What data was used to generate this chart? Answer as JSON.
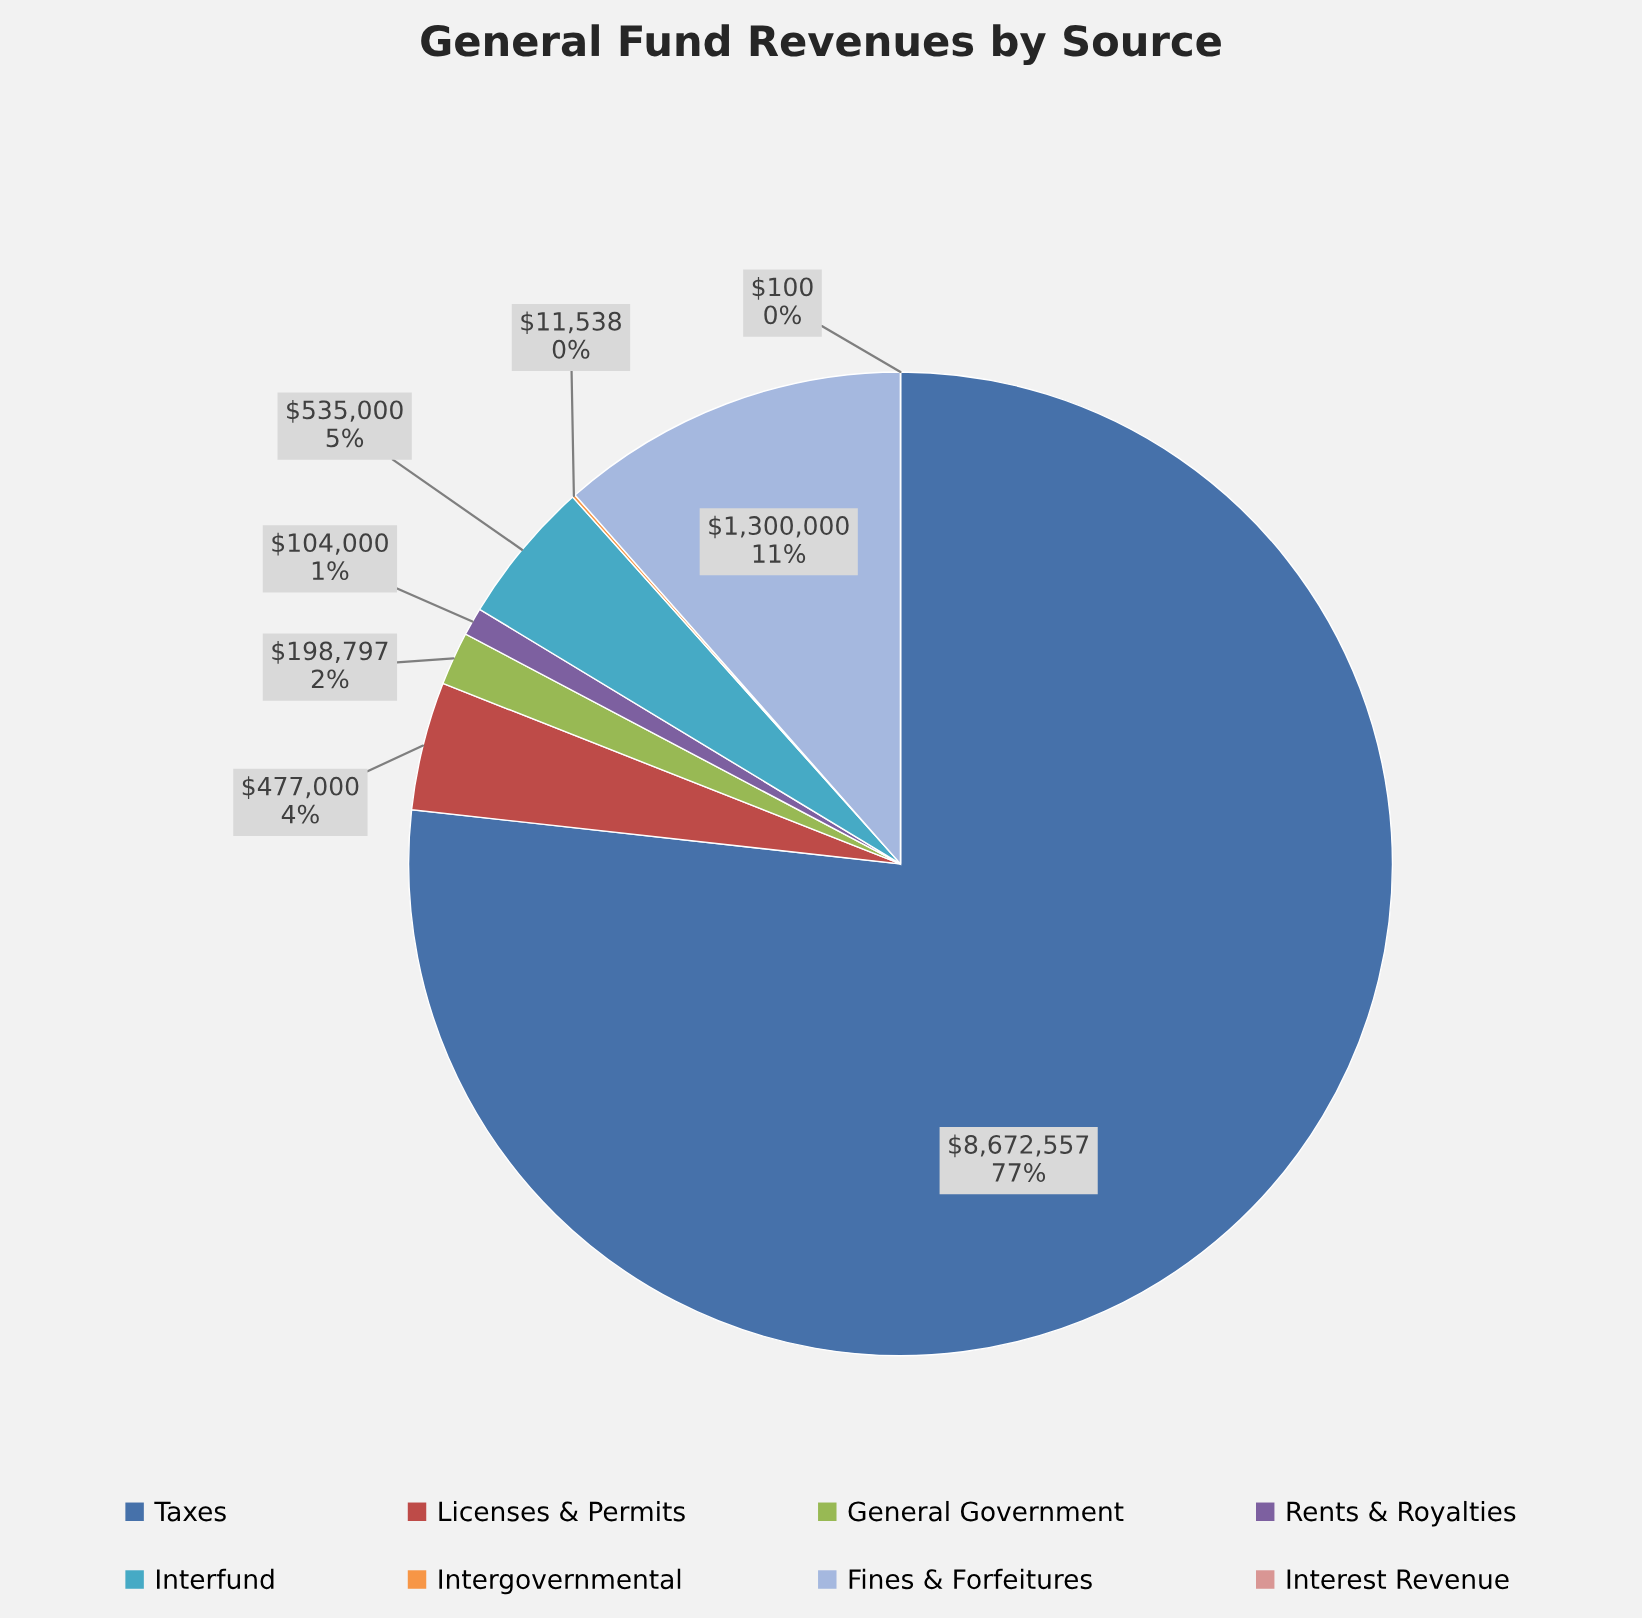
{
  "chart_data": {
    "type": "pie",
    "title": "General Fund Revenues by Source",
    "categories": [
      "Taxes",
      "Licenses & Permits",
      "General Government",
      "Rents & Royalties",
      "Interfund",
      "Intergovernmental",
      "Fines & Forfeitures",
      "Interest Revenue"
    ],
    "values": [
      8672557,
      477000,
      198797,
      104000,
      535000,
      11538,
      1300000,
      100
    ],
    "value_labels": [
      "$8,672,557\n77%",
      "$477,000\n4%",
      "$198,797\n2%",
      "$104,000\n1%",
      "$535,000\n5%",
      "$11,538\n0%",
      "$1,300,000\n11%",
      "$100\n0%"
    ],
    "colors": [
      "#4671aa",
      "#be4b48",
      "#98b954",
      "#7d60a0",
      "#46aac5",
      "#f79646",
      "#a5b8df",
      "#d99694"
    ],
    "legend": "bottom"
  }
}
